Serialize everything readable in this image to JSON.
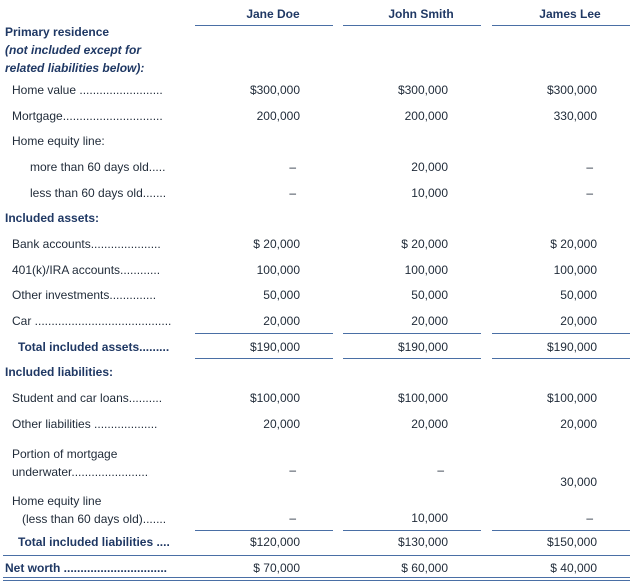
{
  "table": {
    "columns": [
      "Jane Doe",
      "John Smith",
      "James Lee"
    ],
    "rows": [
      {
        "label": "Primary residence",
        "note": [
          "(not included except for",
          "related liabilities below):"
        ]
      },
      {
        "label": "Home value .........................",
        "values": [
          "$300,000",
          "$300,000",
          "$300,000"
        ]
      },
      {
        "label": "Mortgage..............................",
        "values": [
          "200,000",
          "200,000",
          "330,000"
        ]
      },
      {
        "label": "Home equity line:"
      },
      {
        "label": "more than 60 days old.....",
        "values": [
          "–",
          "20,000",
          "–"
        ]
      },
      {
        "label": "less than 60 days old.......",
        "values": [
          "–",
          "10,000",
          "–"
        ]
      },
      {
        "label": "Included assets:"
      },
      {
        "label": "Bank accounts.....................",
        "values": [
          "$ 20,000",
          "$ 20,000",
          "$ 20,000"
        ]
      },
      {
        "label": "401(k)/IRA accounts............",
        "values": [
          "100,000",
          "100,000",
          "100,000"
        ]
      },
      {
        "label": "Other investments..............",
        "values": [
          "50,000",
          "50,000",
          "50,000"
        ]
      },
      {
        "label": "Car .........................................",
        "values": [
          "20,000",
          "20,000",
          "20,000"
        ]
      },
      {
        "label": "Total included assets.........",
        "values": [
          "$190,000",
          "$190,000",
          "$190,000"
        ]
      },
      {
        "label": "Included liabilities:"
      },
      {
        "label": "Student and car loans..........",
        "values": [
          "$100,000",
          "$100,000",
          "$100,000"
        ]
      },
      {
        "label": "Other liabilities ...................",
        "values": [
          "20,000",
          "20,000",
          "20,000"
        ]
      },
      {
        "label": [
          "Portion of mortgage",
          "underwater......................."
        ],
        "values": [
          "–",
          "–",
          "30,000"
        ]
      },
      {
        "label": [
          "Home equity line",
          "(less than 60 days old)......."
        ],
        "values": [
          "–",
          "10,000",
          "–"
        ]
      },
      {
        "label": "Total included liabilities ....",
        "values": [
          "$120,000",
          "$130,000",
          "$150,000"
        ]
      },
      {
        "label": "Net worth ...............................",
        "values": [
          "$ 70,000",
          "$ 60,000",
          "$ 40,000"
        ]
      }
    ]
  }
}
